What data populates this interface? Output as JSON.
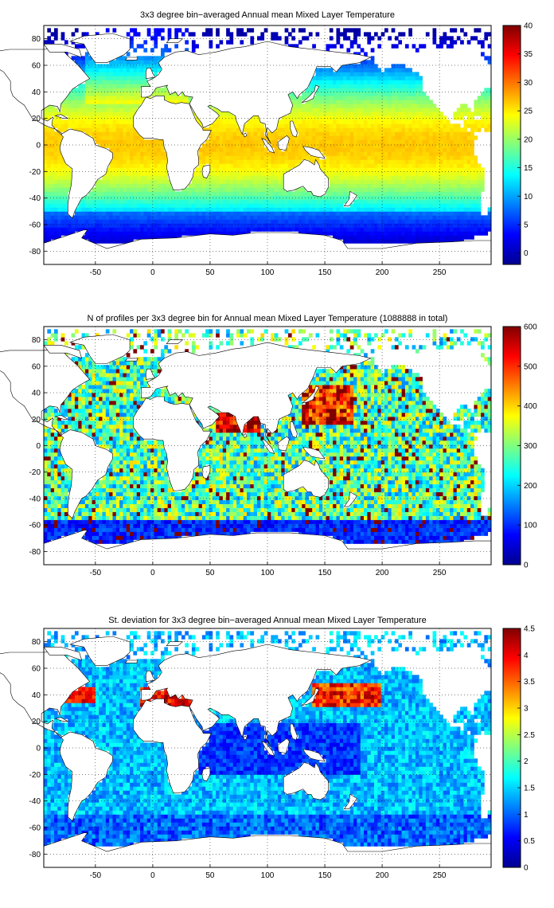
{
  "colormap": {
    "name": "jet",
    "stops": [
      "#00008f",
      "#0000ff",
      "#00ffff",
      "#ffff00",
      "#ff0000",
      "#800000"
    ],
    "land_color": "#ffffff",
    "coastline_color": "#000000",
    "background": "#ffffff"
  },
  "chart_data": [
    {
      "type": "heatmap",
      "title": "3x3 degree bin−averaged Annual mean Mixed Layer Temperature",
      "xlabel": "",
      "ylabel": "",
      "xlim": [
        -95,
        295
      ],
      "ylim": [
        -90,
        90
      ],
      "xticks": [
        -50,
        0,
        50,
        100,
        150,
        200,
        250
      ],
      "yticks": [
        80,
        60,
        40,
        20,
        0,
        -20,
        -40,
        -60,
        -80
      ],
      "grid": true,
      "bin_deg": 3,
      "colorbar": {
        "min": -2,
        "max": 40,
        "ticks": [
          0,
          5,
          10,
          15,
          20,
          25,
          30,
          35,
          40
        ],
        "location": "right"
      },
      "field": "temperature"
    },
    {
      "type": "heatmap",
      "title": "N of profiles per 3x3 degree bin for Annual mean Mixed Layer Temperature  (1088888 in total)",
      "xlabel": "",
      "ylabel": "",
      "xlim": [
        -95,
        295
      ],
      "ylim": [
        -90,
        90
      ],
      "xticks": [
        -50,
        0,
        50,
        100,
        150,
        200,
        250
      ],
      "yticks": [
        80,
        60,
        40,
        20,
        0,
        -20,
        -40,
        -60,
        -80
      ],
      "grid": true,
      "bin_deg": 3,
      "colorbar": {
        "min": 0,
        "max": 600,
        "ticks": [
          0,
          100,
          200,
          300,
          400,
          500,
          600
        ],
        "location": "right"
      },
      "field": "count",
      "total_profiles": 1088888
    },
    {
      "type": "heatmap",
      "title": "St. deviation for 3x3 degree bin−averaged Annual mean Mixed Layer Temperature",
      "xlabel": "",
      "ylabel": "",
      "xlim": [
        -95,
        295
      ],
      "ylim": [
        -90,
        90
      ],
      "xticks": [
        -50,
        0,
        50,
        100,
        150,
        200,
        250
      ],
      "yticks": [
        80,
        60,
        40,
        20,
        0,
        -20,
        -40,
        -60,
        -80
      ],
      "grid": true,
      "bin_deg": 3,
      "colorbar": {
        "min": 0,
        "max": 4.5,
        "ticks": [
          0,
          0.5,
          1,
          1.5,
          2,
          2.5,
          3,
          3.5,
          4,
          4.5
        ],
        "location": "right"
      },
      "field": "stdev"
    }
  ]
}
